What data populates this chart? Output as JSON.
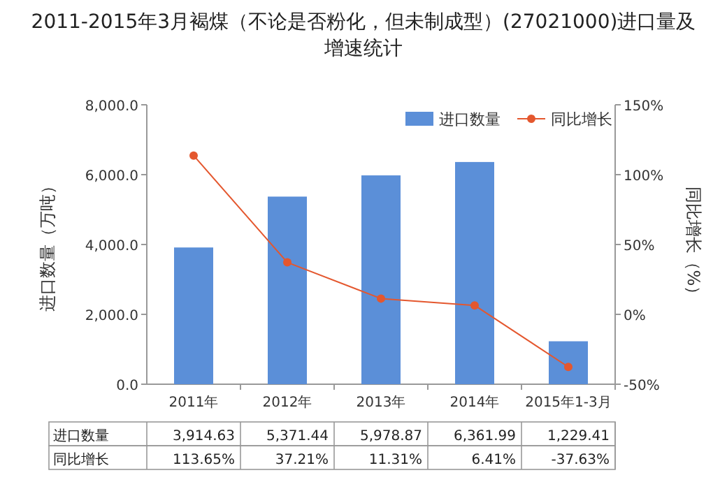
{
  "chart_data": {
    "type": "bar",
    "title": "2011-2015年3月褐煤（不论是否粉化，但未制成型）(27021000)进口量及增速统计",
    "ylabel": "进口数量（万吨）",
    "y2label": "同比增长（%）",
    "categories": [
      "2011年",
      "2012年",
      "2013年",
      "2014年",
      "2015年1-3月"
    ],
    "ylim": [
      0,
      8000
    ],
    "yticks": [
      {
        "value": 0,
        "label": "0.0"
      },
      {
        "value": 2000,
        "label": "2,000.0"
      },
      {
        "value": 4000,
        "label": "4,000.0"
      },
      {
        "value": 6000,
        "label": "6,000.0"
      },
      {
        "value": 8000,
        "label": "8,000.0"
      }
    ],
    "y2lim": [
      -50,
      150
    ],
    "y2ticks": [
      {
        "value": -50,
        "label": "-50%"
      },
      {
        "value": 0,
        "label": "0%"
      },
      {
        "value": 50,
        "label": "50%"
      },
      {
        "value": 100,
        "label": "100%"
      },
      {
        "value": 150,
        "label": "150%"
      }
    ],
    "legend": "top right",
    "series": [
      {
        "name": "进口数量",
        "color": "#5b8fd8",
        "values": [
          3914.63,
          5371.44,
          5978.87,
          6361.99,
          1229.41
        ],
        "value_labels": [
          "3,914.63",
          "5,371.44",
          "5,978.87",
          "6,361.99",
          "1,229.41"
        ]
      },
      {
        "name": "同比增长",
        "type": "line",
        "axis": "y2",
        "color": "#e4572e",
        "marker": "circle",
        "values": [
          113.65,
          37.21,
          11.31,
          6.41,
          -37.63
        ],
        "value_labels": [
          "113.65%",
          "37.21%",
          "11.31%",
          "6.41%",
          "-37.63%"
        ]
      }
    ]
  }
}
